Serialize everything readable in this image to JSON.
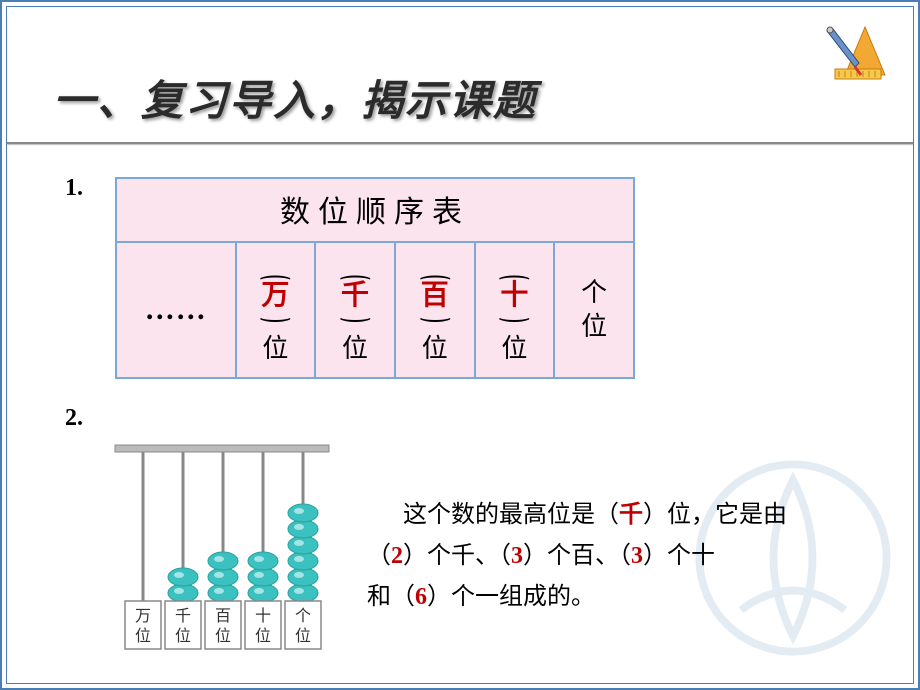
{
  "title": "一、复习导入，揭示课题",
  "item1_number": "1.",
  "item2_number": "2.",
  "table": {
    "header": "数位顺序表",
    "ellipsis": "……",
    "cells": [
      {
        "char": "万",
        "suffix": "位"
      },
      {
        "char": "千",
        "suffix": "位"
      },
      {
        "char": "百",
        "suffix": "位"
      },
      {
        "char": "十",
        "suffix": "位"
      }
    ],
    "last_cell": {
      "char": "个",
      "suffix": "位"
    },
    "colors": {
      "cell_bg": "#fce4ef",
      "border": "#7ba7d9",
      "highlight": "#c00000"
    }
  },
  "abacus": {
    "columns": [
      "万位",
      "千位",
      "百位",
      "十位",
      "个位"
    ],
    "beads": [
      0,
      2,
      3,
      3,
      6
    ],
    "bead_color": "#3cc1c1",
    "bead_shade": "#2aa0a0",
    "rod_color": "#888888",
    "frame_color": "#888888"
  },
  "sentence": {
    "t1": "这个数的最高位是（",
    "a1": "千",
    "t2": "）位，它是由",
    "t3": "（",
    "a2": "2",
    "t4": "）个千、（",
    "a3": "3",
    "t5": "）个百、（",
    "a4": "3",
    "t6": "）个十",
    "t7": "和（",
    "a5": "6",
    "t8": "）个一组成的。"
  }
}
